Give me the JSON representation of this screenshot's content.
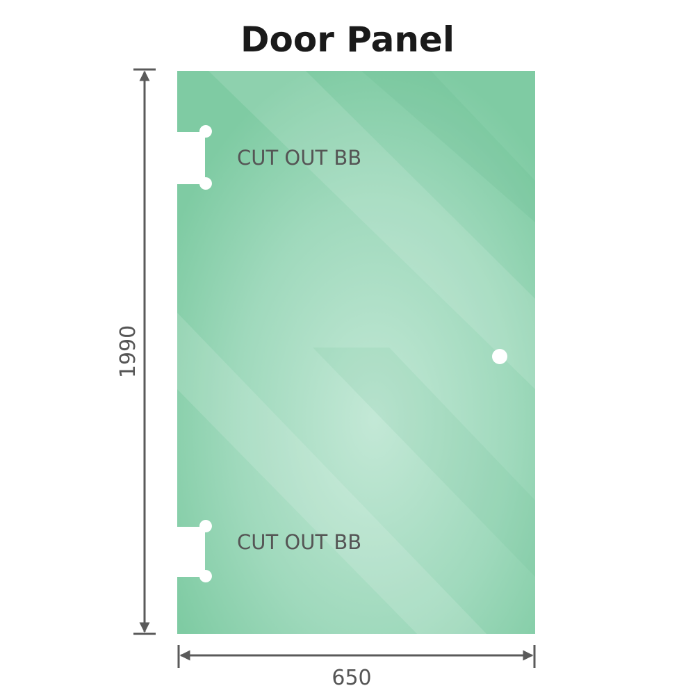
{
  "title": "Door Panel",
  "dimensions": {
    "height": "1990",
    "width": "650"
  },
  "cutouts": [
    {
      "label": "CUT OUT BB"
    },
    {
      "label": "CUT OUT BB"
    }
  ],
  "colors": {
    "glass": "#7fcba3",
    "glass_light": "#bfe6d3",
    "dimension_line": "#5a5a5a",
    "text": "#555555"
  }
}
